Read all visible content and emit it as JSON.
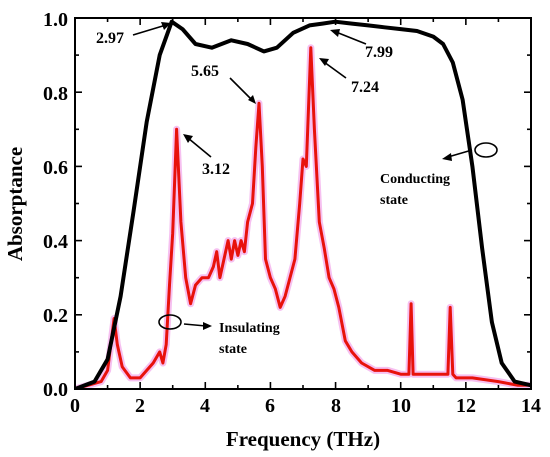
{
  "chart_data": {
    "type": "line",
    "xlabel": "Frequency (THz)",
    "ylabel": "Absorptance",
    "xlim": [
      0,
      14
    ],
    "ylim": [
      0,
      1.0
    ],
    "xticks": [
      "0",
      "2",
      "4",
      "6",
      "8",
      "10",
      "12",
      "14"
    ],
    "yticks": [
      "0.0",
      "0.2",
      "0.4",
      "0.6",
      "0.8",
      "1.0"
    ],
    "grid": false,
    "series": [
      {
        "color": "#000000",
        "x": [
          0,
          0.6,
          1.0,
          1.4,
          1.8,
          2.2,
          2.6,
          2.97,
          3.3,
          3.7,
          4.2,
          4.8,
          5.3,
          5.8,
          6.2,
          6.7,
          7.2,
          7.6,
          7.99,
          8.5,
          9.0,
          9.5,
          10.0,
          10.5,
          11.0,
          11.3,
          11.6,
          11.9,
          12.2,
          12.5,
          12.8,
          13.1,
          13.5,
          14.0
        ],
        "y": [
          0.0,
          0.02,
          0.08,
          0.25,
          0.48,
          0.72,
          0.9,
          0.99,
          0.97,
          0.93,
          0.92,
          0.94,
          0.93,
          0.91,
          0.92,
          0.96,
          0.98,
          0.985,
          0.99,
          0.985,
          0.98,
          0.975,
          0.97,
          0.965,
          0.95,
          0.93,
          0.88,
          0.78,
          0.6,
          0.38,
          0.18,
          0.07,
          0.02,
          0.01
        ]
      },
      {
        "color": "#e8120c",
        "x": [
          0,
          0.8,
          1.0,
          1.1,
          1.2,
          1.3,
          1.45,
          1.7,
          2.0,
          2.4,
          2.6,
          2.7,
          2.8,
          2.9,
          3.0,
          3.12,
          3.25,
          3.4,
          3.55,
          3.7,
          3.9,
          4.1,
          4.25,
          4.35,
          4.45,
          4.6,
          4.7,
          4.8,
          4.9,
          5.0,
          5.1,
          5.2,
          5.3,
          5.45,
          5.55,
          5.65,
          5.75,
          5.85,
          6.0,
          6.15,
          6.3,
          6.45,
          6.6,
          6.75,
          6.9,
          7.0,
          7.1,
          7.24,
          7.35,
          7.5,
          7.65,
          7.8,
          7.95,
          8.1,
          8.3,
          8.5,
          8.8,
          9.2,
          9.6,
          10.0,
          10.25,
          10.32,
          10.38,
          10.45,
          10.7,
          11.2,
          11.45,
          11.52,
          11.6,
          11.7,
          12.2,
          13.0,
          13.6,
          14.0
        ],
        "y": [
          0.0,
          0.02,
          0.05,
          0.12,
          0.19,
          0.12,
          0.06,
          0.03,
          0.03,
          0.07,
          0.1,
          0.07,
          0.12,
          0.28,
          0.42,
          0.7,
          0.45,
          0.3,
          0.23,
          0.28,
          0.3,
          0.3,
          0.33,
          0.37,
          0.3,
          0.36,
          0.4,
          0.35,
          0.4,
          0.36,
          0.4,
          0.37,
          0.45,
          0.5,
          0.65,
          0.77,
          0.6,
          0.35,
          0.3,
          0.27,
          0.22,
          0.25,
          0.3,
          0.35,
          0.5,
          0.62,
          0.6,
          0.92,
          0.7,
          0.45,
          0.38,
          0.3,
          0.27,
          0.22,
          0.13,
          0.1,
          0.07,
          0.05,
          0.05,
          0.04,
          0.04,
          0.23,
          0.04,
          0.04,
          0.04,
          0.04,
          0.04,
          0.22,
          0.04,
          0.03,
          0.03,
          0.02,
          0.01,
          0.01
        ]
      }
    ],
    "annotations": [
      {
        "text": "2.97",
        "x": 2.97,
        "y": 0.99
      },
      {
        "text": "5.65",
        "x": 5.65,
        "y": 0.77
      },
      {
        "text": "3.12",
        "x": 3.12,
        "y": 0.7
      },
      {
        "text": "7.99",
        "x": 7.99,
        "y": 0.99
      },
      {
        "text": "7.24",
        "x": 7.24,
        "y": 0.92
      },
      {
        "text": "Conducting",
        "line2": "state"
      },
      {
        "text": "Insulating",
        "line2": "state"
      }
    ]
  }
}
